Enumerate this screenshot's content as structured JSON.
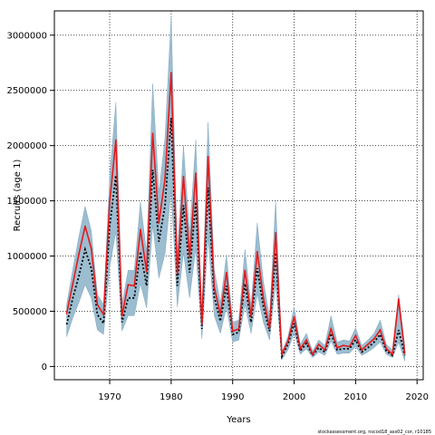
{
  "chart_data": {
    "type": "line",
    "title": "",
    "xlabel": "Years",
    "ylabel": "Recruits (age 1)",
    "xlim": [
      1961,
      2021
    ],
    "ylim": [
      -120000,
      3220000
    ],
    "grid": true,
    "grid_style": "dotted",
    "legend": "none",
    "x_ticks": [
      1970,
      1980,
      1990,
      2000,
      2010,
      2020
    ],
    "y_ticks": [
      0,
      500000,
      1000000,
      1500000,
      2000000,
      2500000,
      3000000
    ],
    "x_tick_labels": [
      "1970",
      "1980",
      "1990",
      "2000",
      "2010",
      "2020"
    ],
    "y_tick_labels": [
      "0",
      "500000",
      "1000000",
      "1500000",
      "2000000",
      "2500000",
      "3000000"
    ],
    "x": [
      1963,
      1964,
      1965,
      1966,
      1967,
      1968,
      1969,
      1970,
      1971,
      1972,
      1973,
      1974,
      1975,
      1976,
      1977,
      1978,
      1979,
      1980,
      1981,
      1982,
      1983,
      1984,
      1985,
      1986,
      1987,
      1988,
      1989,
      1990,
      1991,
      1992,
      1993,
      1994,
      1995,
      1996,
      1997,
      1998,
      1999,
      2000,
      2001,
      2002,
      2003,
      2004,
      2005,
      2006,
      2007,
      2008,
      2009,
      2010,
      2011,
      2012,
      2013,
      2014,
      2015,
      2016,
      2017,
      2018
    ],
    "series": [
      {
        "role": "estimate",
        "color": "#e31a1c",
        "values": [
          480000,
          750000,
          1020000,
          1270000,
          1070000,
          560000,
          470000,
          1490000,
          2050000,
          460000,
          740000,
          730000,
          1240000,
          860000,
          2110000,
          1300000,
          1700000,
          2660000,
          840000,
          1720000,
          990000,
          1750000,
          380000,
          1900000,
          720000,
          470000,
          850000,
          320000,
          340000,
          870000,
          450000,
          1040000,
          620000,
          350000,
          1210000,
          110000,
          230000,
          450000,
          160000,
          240000,
          110000,
          200000,
          150000,
          340000,
          170000,
          190000,
          180000,
          280000,
          150000,
          200000,
          250000,
          330000,
          160000,
          110000,
          610000,
          120000
        ]
      },
      {
        "role": "point-estimate",
        "color": "#000000",
        "values": [
          380000,
          620000,
          820000,
          1060000,
          890000,
          470000,
          390000,
          1270000,
          1730000,
          400000,
          620000,
          620000,
          1040000,
          730000,
          1780000,
          1130000,
          1460000,
          2250000,
          730000,
          1460000,
          850000,
          1490000,
          340000,
          1620000,
          630000,
          410000,
          730000,
          290000,
          310000,
          750000,
          400000,
          890000,
          540000,
          320000,
          1030000,
          90000,
          200000,
          390000,
          140000,
          210000,
          100000,
          170000,
          130000,
          300000,
          150000,
          160000,
          160000,
          240000,
          130000,
          170000,
          220000,
          290000,
          140000,
          100000,
          330000,
          100000
        ]
      },
      {
        "role": "lower",
        "color": "#9cbdd0",
        "values": [
          270000,
          440000,
          580000,
          740000,
          620000,
          330000,
          290000,
          900000,
          1220000,
          320000,
          460000,
          460000,
          750000,
          530000,
          1280000,
          800000,
          1020000,
          1600000,
          540000,
          1030000,
          620000,
          1070000,
          250000,
          1170000,
          460000,
          300000,
          540000,
          220000,
          240000,
          560000,
          300000,
          660000,
          400000,
          240000,
          760000,
          60000,
          150000,
          300000,
          110000,
          160000,
          80000,
          130000,
          100000,
          230000,
          110000,
          120000,
          120000,
          180000,
          100000,
          130000,
          170000,
          220000,
          110000,
          80000,
          220000,
          50000
        ]
      },
      {
        "role": "upper",
        "color": "#9cbdd0",
        "values": [
          560000,
          880000,
          1180000,
          1450000,
          1230000,
          650000,
          560000,
          1720000,
          2390000,
          560000,
          870000,
          870000,
          1490000,
          1030000,
          2560000,
          1570000,
          2070000,
          3170000,
          1000000,
          2000000,
          1190000,
          2050000,
          460000,
          2210000,
          880000,
          570000,
          1010000,
          400000,
          420000,
          1060000,
          550000,
          1300000,
          770000,
          450000,
          1500000,
          130000,
          270000,
          540000,
          200000,
          300000,
          140000,
          240000,
          190000,
          460000,
          220000,
          240000,
          230000,
          350000,
          190000,
          240000,
          300000,
          420000,
          200000,
          150000,
          650000,
          190000
        ]
      }
    ]
  },
  "footer": {
    "note": "stockassessment.org, nscod18_ass02_cor, r10185"
  }
}
